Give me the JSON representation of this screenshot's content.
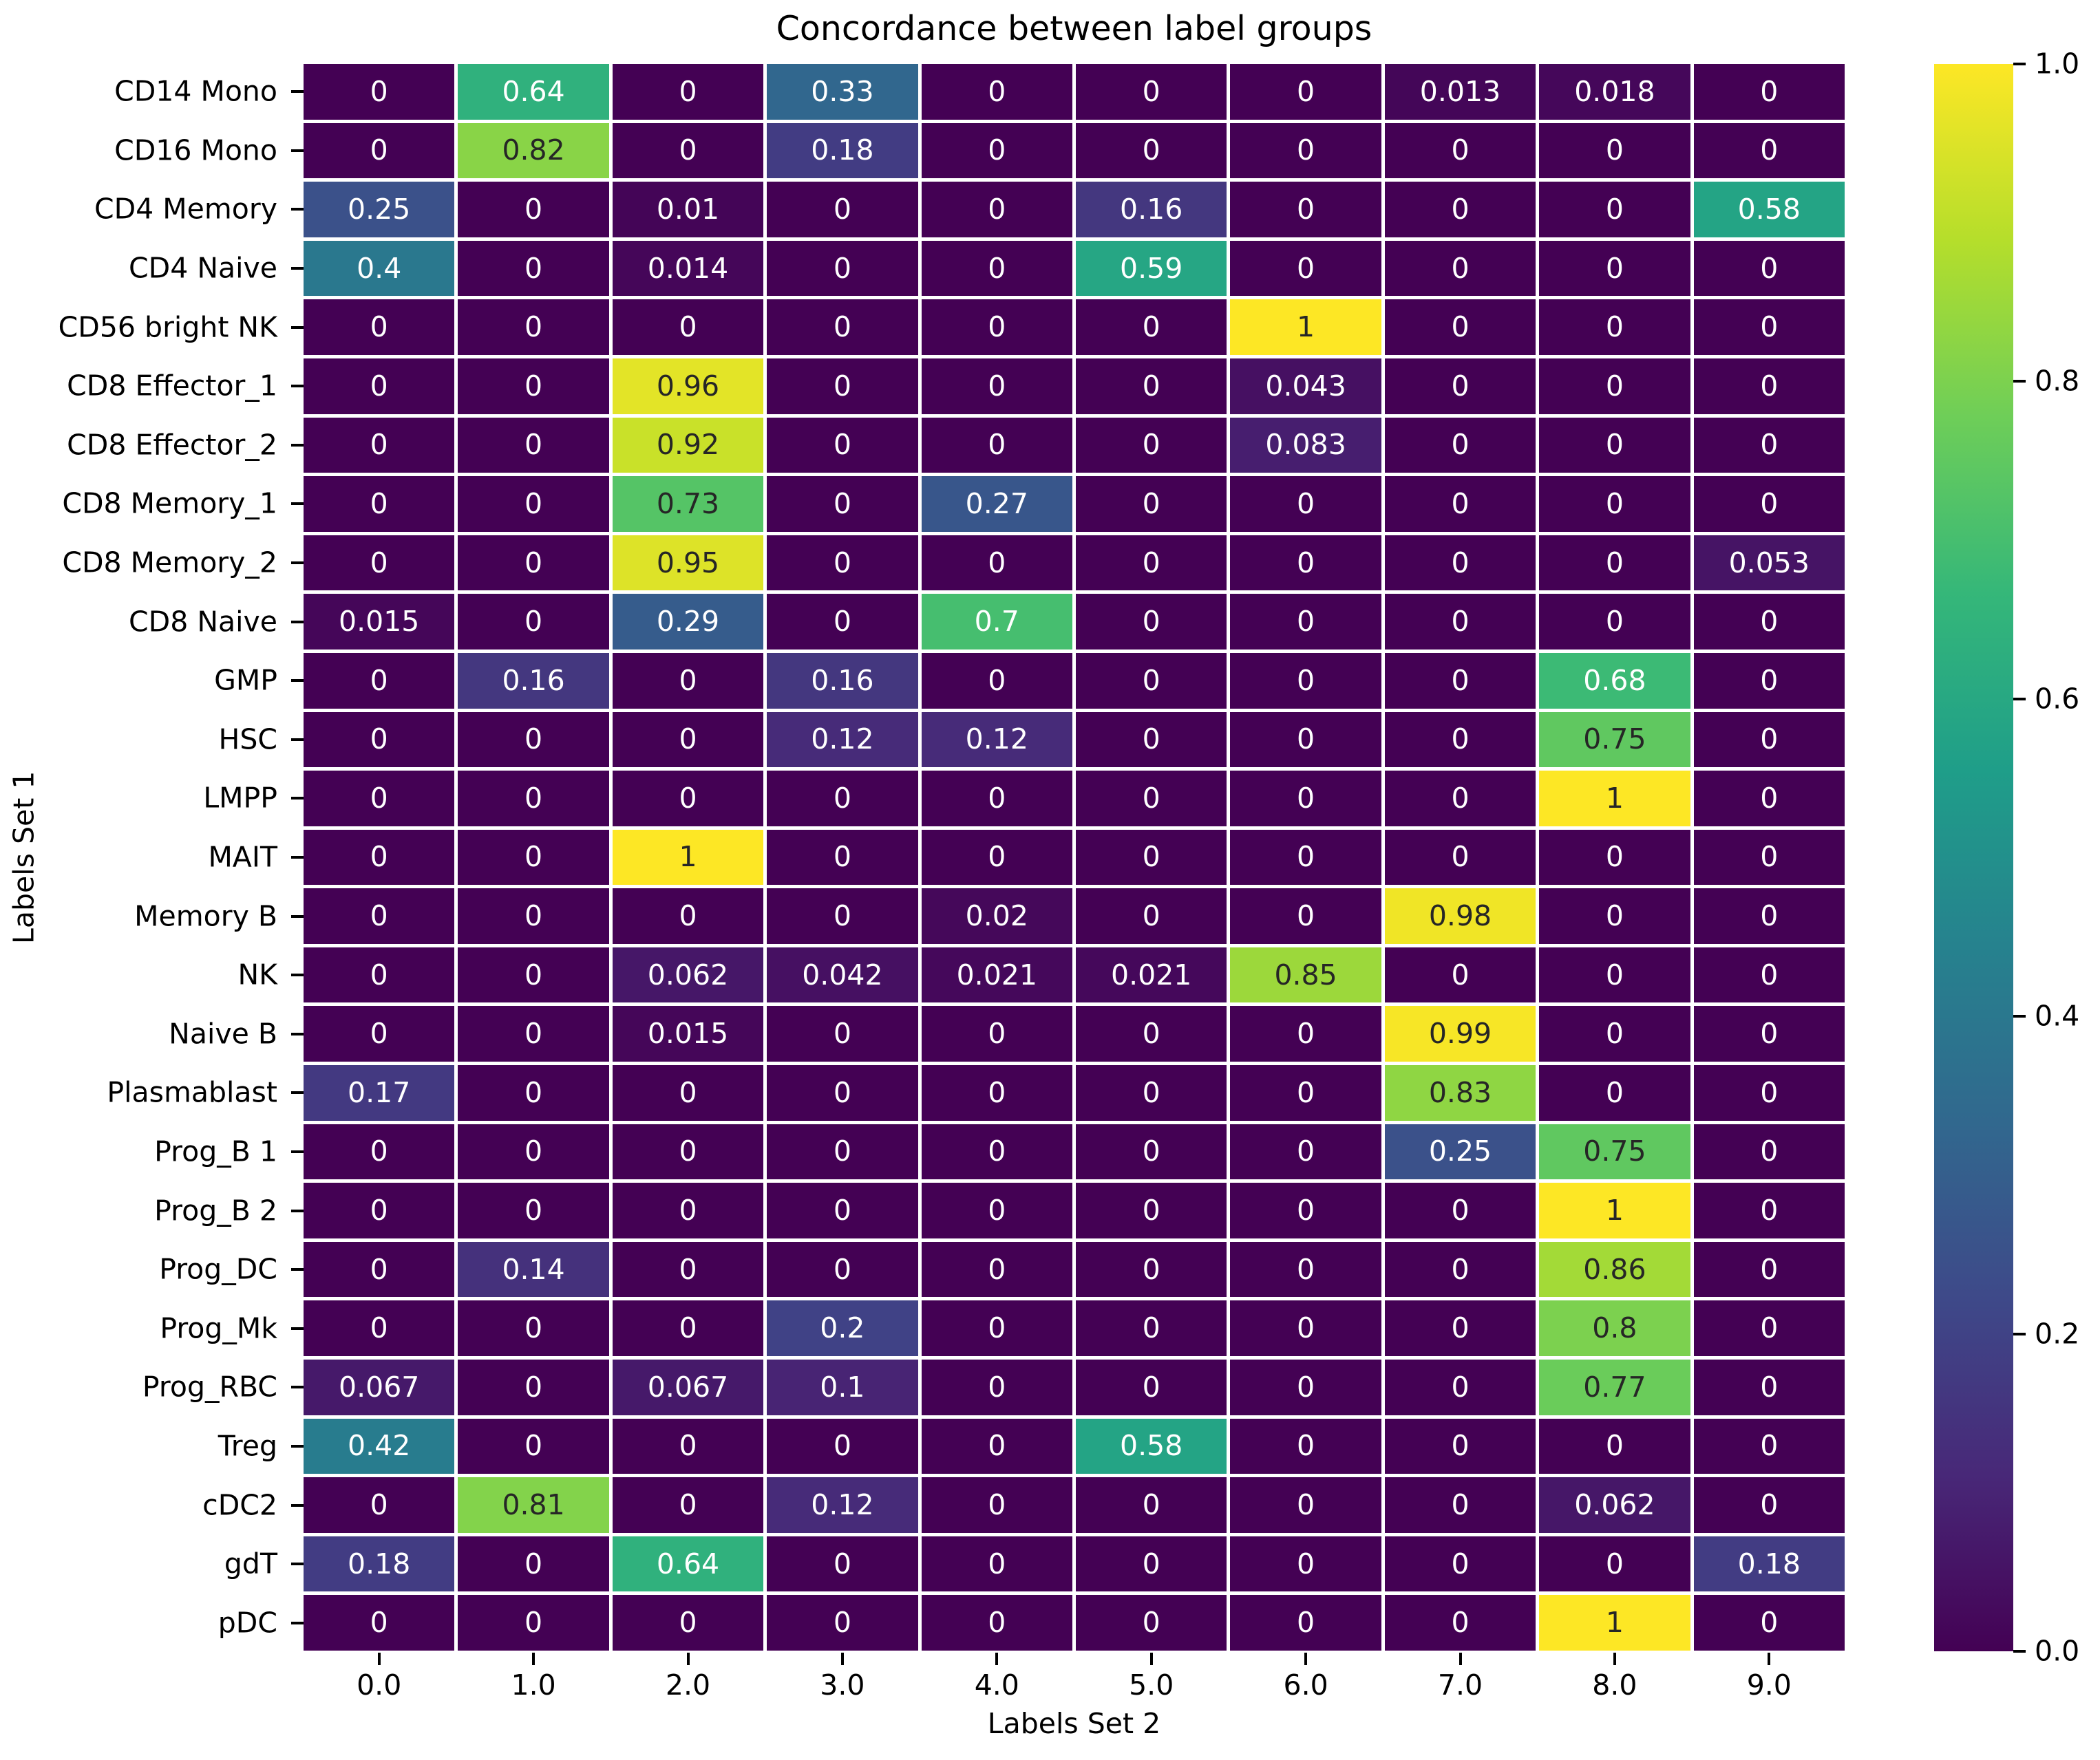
{
  "figure": {
    "background": "#ffffff"
  },
  "chart_data": {
    "type": "heatmap",
    "title": "Concordance between label groups",
    "xlabel": "Labels Set 2",
    "ylabel": "Labels Set 1",
    "x_tick_labels": [
      "0.0",
      "1.0",
      "2.0",
      "3.0",
      "4.0",
      "5.0",
      "6.0",
      "7.0",
      "8.0",
      "9.0"
    ],
    "y_tick_labels": [
      "CD14 Mono",
      "CD16 Mono",
      "CD4 Memory",
      "CD4 Naive",
      "CD56 bright NK",
      "CD8 Effector_1",
      "CD8 Effector_2",
      "CD8 Memory_1",
      "CD8 Memory_2",
      "CD8 Naive",
      "GMP",
      "HSC",
      "LMPP",
      "MAIT",
      "Memory B",
      "NK",
      "Naive B",
      "Plasmablast",
      "Prog_B 1",
      "Prog_B 2",
      "Prog_DC",
      "Prog_Mk",
      "Prog_RBC",
      "Treg",
      "cDC2",
      "gdT",
      "pDC"
    ],
    "values": [
      [
        0,
        0.64,
        0,
        0.33,
        0,
        0,
        0,
        0.013,
        0.018,
        0
      ],
      [
        0,
        0.82,
        0,
        0.18,
        0,
        0,
        0,
        0,
        0,
        0
      ],
      [
        0.25,
        0,
        0.01,
        0,
        0,
        0.16,
        0,
        0,
        0,
        0.58
      ],
      [
        0.4,
        0,
        0.014,
        0,
        0,
        0.59,
        0,
        0,
        0,
        0
      ],
      [
        0,
        0,
        0,
        0,
        0,
        0,
        1,
        0,
        0,
        0
      ],
      [
        0,
        0,
        0.96,
        0,
        0,
        0,
        0.043,
        0,
        0,
        0
      ],
      [
        0,
        0,
        0.92,
        0,
        0,
        0,
        0.083,
        0,
        0,
        0
      ],
      [
        0,
        0,
        0.73,
        0,
        0.27,
        0,
        0,
        0,
        0,
        0
      ],
      [
        0,
        0,
        0.95,
        0,
        0,
        0,
        0,
        0,
        0,
        0.053
      ],
      [
        0.015,
        0,
        0.29,
        0,
        0.7,
        0,
        0,
        0,
        0,
        0
      ],
      [
        0,
        0.16,
        0,
        0.16,
        0,
        0,
        0,
        0,
        0.68,
        0
      ],
      [
        0,
        0,
        0,
        0.12,
        0.12,
        0,
        0,
        0,
        0.75,
        0
      ],
      [
        0,
        0,
        0,
        0,
        0,
        0,
        0,
        0,
        1,
        0
      ],
      [
        0,
        0,
        1,
        0,
        0,
        0,
        0,
        0,
        0,
        0
      ],
      [
        0,
        0,
        0,
        0,
        0.02,
        0,
        0,
        0.98,
        0,
        0
      ],
      [
        0,
        0,
        0.062,
        0.042,
        0.021,
        0.021,
        0.85,
        0,
        0,
        0
      ],
      [
        0,
        0,
        0.015,
        0,
        0,
        0,
        0,
        0.99,
        0,
        0
      ],
      [
        0.17,
        0,
        0,
        0,
        0,
        0,
        0,
        0.83,
        0,
        0
      ],
      [
        0,
        0,
        0,
        0,
        0,
        0,
        0,
        0.25,
        0.75,
        0
      ],
      [
        0,
        0,
        0,
        0,
        0,
        0,
        0,
        0,
        1,
        0
      ],
      [
        0,
        0.14,
        0,
        0,
        0,
        0,
        0,
        0,
        0.86,
        0
      ],
      [
        0,
        0,
        0,
        0.2,
        0,
        0,
        0,
        0,
        0.8,
        0
      ],
      [
        0.067,
        0,
        0.067,
        0.1,
        0,
        0,
        0,
        0,
        0.77,
        0
      ],
      [
        0.42,
        0,
        0,
        0,
        0,
        0.58,
        0,
        0,
        0,
        0
      ],
      [
        0,
        0.81,
        0,
        0.12,
        0,
        0,
        0,
        0,
        0.062,
        0
      ],
      [
        0.18,
        0,
        0.64,
        0,
        0,
        0,
        0,
        0,
        0,
        0.18
      ],
      [
        0,
        0,
        0,
        0,
        0,
        0,
        0,
        0,
        1,
        0
      ]
    ],
    "vmin": 0.0,
    "vmax": 1.0,
    "colorbar_ticks": [
      0.0,
      0.2,
      0.4,
      0.6,
      0.8,
      1.0
    ],
    "colormap": "viridis",
    "colormap_colors": [
      "#440154",
      "#482878",
      "#3e4989",
      "#31688e",
      "#26828e",
      "#1f9e89",
      "#35b779",
      "#6ece58",
      "#b5de2b",
      "#fde725"
    ],
    "annotation_color_light": "#ffffff",
    "annotation_color_dark": "#262626",
    "gridline_color": "#ffffff",
    "tick_color": "#000000",
    "grid": "off",
    "legend_position": "right"
  }
}
